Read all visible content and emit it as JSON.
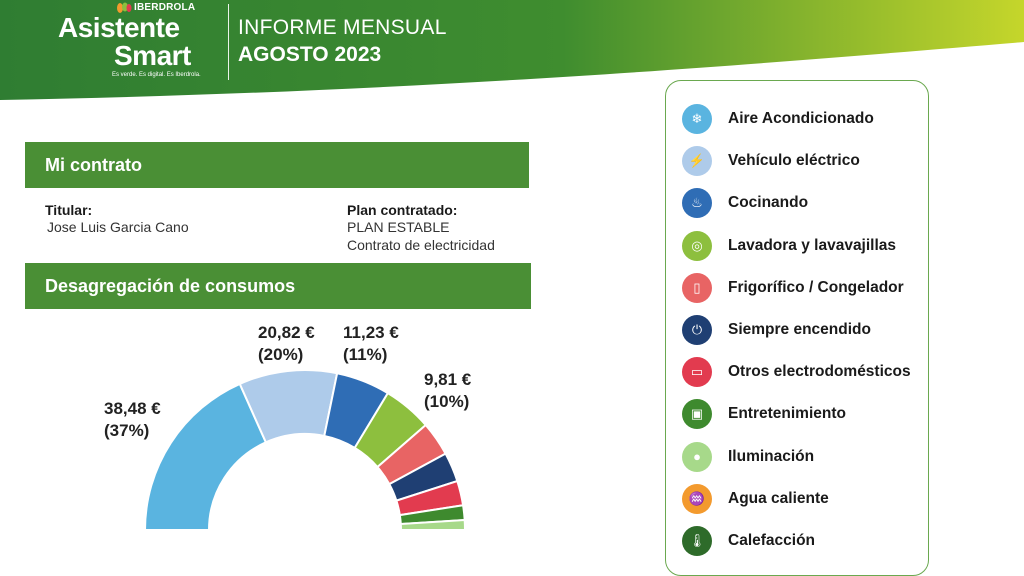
{
  "header": {
    "company": "IBERDROLA",
    "app_line1": "Asistente",
    "app_line2": "Smart",
    "tagline": "Es verde. Es digital. Es Iberdrola.",
    "report_title": "INFORME MENSUAL",
    "report_period": "AGOSTO 2023"
  },
  "contract": {
    "section_title": "Mi contrato",
    "holder_label": "Titular:",
    "holder_name": "Jose Luis Garcia Cano",
    "plan_label": "Plan contratado:",
    "plan_name": "PLAN ESTABLE",
    "plan_type": "Contrato de electricidad"
  },
  "breakdown": {
    "section_title": "Desagregación de consumos"
  },
  "colors": {
    "header_green_dark": "#2f7d32",
    "header_green_light": "#c5d62b",
    "section_green": "#4a8f35",
    "legend_border": "#6aa84f"
  },
  "chart_data": {
    "type": "pie",
    "variant": "half-donut",
    "total_angle_deg": 180,
    "categories": [
      "Aire Acondicionado",
      "Vehículo eléctrico",
      "Cocinando",
      "Lavadora y lavavajillas",
      "Frigorífico / Congelador",
      "Siempre encendido",
      "Otros electrodomésticos",
      "Entretenimiento",
      "Iluminación",
      "Agua caliente",
      "Calefacción"
    ],
    "values": [
      37,
      20,
      11,
      10,
      7,
      6,
      5,
      3,
      2,
      0,
      0
    ],
    "colors": [
      "#5ab4e0",
      "#aecbea",
      "#2f6db5",
      "#8dbf3e",
      "#e86464",
      "#1f3f73",
      "#e23b4f",
      "#3e8a2e",
      "#a7d98a",
      "#f39a2e",
      "#2e6b2a"
    ],
    "labels": [
      {
        "amount": "38,48 €",
        "percent": "(37%)"
      },
      {
        "amount": "20,82 €",
        "percent": "(20%)"
      },
      {
        "amount": "11,23 €",
        "percent": "(11%)"
      },
      {
        "amount": "9,81 €",
        "percent": "(10%)"
      }
    ]
  },
  "legend": [
    {
      "label": "Aire Acondicionado",
      "icon": "air-conditioner-icon",
      "glyph": "❄",
      "color": "#5ab4e0"
    },
    {
      "label": "Vehículo eléctrico",
      "icon": "electric-car-icon",
      "glyph": "⚡",
      "color": "#aecbea"
    },
    {
      "label": "Cocinando",
      "icon": "cooking-pot-icon",
      "glyph": "♨",
      "color": "#2f6db5"
    },
    {
      "label": "Lavadora y lavavajillas",
      "icon": "washing-machine-icon",
      "glyph": "◎",
      "color": "#8dbf3e"
    },
    {
      "label": "Frigorífico / Congelador",
      "icon": "fridge-icon",
      "glyph": "▯",
      "color": "#e86464"
    },
    {
      "label": "Siempre encendido",
      "icon": "plug-icon",
      "glyph": "⏻",
      "color": "#1f3f73"
    },
    {
      "label": "Otros electrodomésticos",
      "icon": "appliance-icon",
      "glyph": "▭",
      "color": "#e23b4f"
    },
    {
      "label": "Entretenimiento",
      "icon": "tv-icon",
      "glyph": "▣",
      "color": "#3e8a2e"
    },
    {
      "label": "Iluminación",
      "icon": "light-bulb-icon",
      "glyph": "●",
      "color": "#a7d98a"
    },
    {
      "label": "Agua caliente",
      "icon": "water-tap-icon",
      "glyph": "♒",
      "color": "#f39a2e"
    },
    {
      "label": "Calefacción",
      "icon": "thermometer-icon",
      "glyph": "🌡",
      "color": "#2e6b2a"
    }
  ]
}
